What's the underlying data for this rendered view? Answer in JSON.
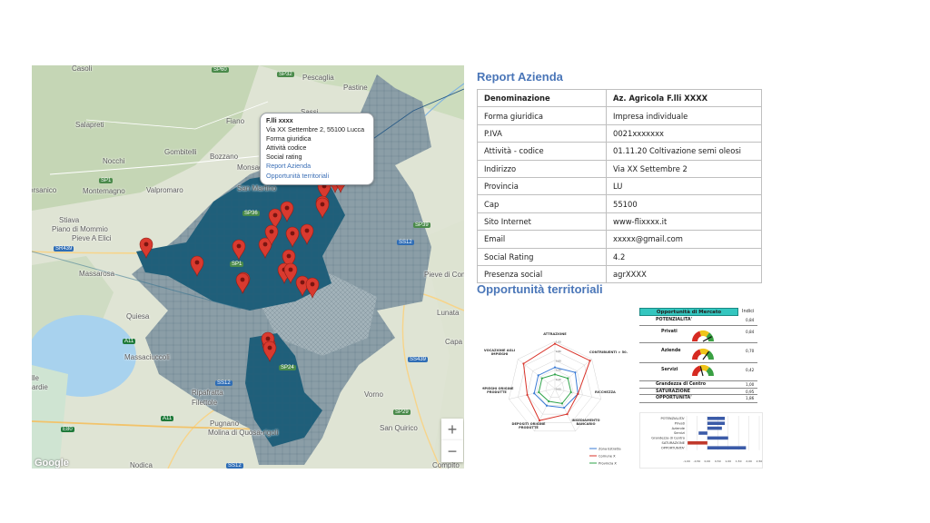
{
  "map": {
    "places": [
      "Casoli",
      "Pescaglia",
      "Pastine",
      "Salapreti",
      "Fiano",
      "Sassi",
      "Nocchi",
      "Gombitelli",
      "Bozzano",
      "Monsagrati",
      "orsanico",
      "Montemagno",
      "Valpromaro",
      "San Martino",
      "Stiava",
      "Piano di Mommio",
      "Pieve A Elici",
      "Massarosa",
      "Quiesa",
      "Pieve di Compito",
      "Massaciuccoli",
      "Capa",
      "Lunata",
      "Ripafratta",
      "Filettole",
      "Vorno",
      "Pugnano",
      "Molina di Quosa-rigoli",
      "San Quirico",
      "Nodica",
      "Compito",
      "lle",
      "ardie"
    ],
    "roads": [
      "SP60",
      "SP32",
      "SP1",
      "SR439",
      "SP1",
      "SS12",
      "SP39",
      "SS12",
      "SP24",
      "SP29",
      "A11",
      "A11",
      "E80",
      "SS12",
      "SP36",
      "SS439"
    ],
    "popup": {
      "title": "F.lli xxxx",
      "address": "Via XX Settembre 2, 55100 Lucca",
      "forma": "Forma giuridica",
      "attivita": "Attività codice",
      "social": "Social rating",
      "link_report": "Report Azienda",
      "link_opportunita": "Opportunità territoriali"
    },
    "zoom_in": "+",
    "zoom_out": "−",
    "logo": "Google",
    "marker_count": 25
  },
  "report": {
    "title": "Report Azienda",
    "rows": [
      {
        "key": "Denominazione",
        "value": "Az. Agricola F.lli XXXX"
      },
      {
        "key": "Forma giuridica",
        "value": "Impresa individuale"
      },
      {
        "key": "P.IVA",
        "value": "0021xxxxxxx"
      },
      {
        "key": "Attività - codice",
        "value": "01.11.20 Coltivazione semi oleosi"
      },
      {
        "key": "Indirizzo",
        "value": "Via XX Settembre 2"
      },
      {
        "key": "Provincia",
        "value": "LU"
      },
      {
        "key": "Cap",
        "value": "55100"
      },
      {
        "key": "Sito Internet",
        "value": "www-flixxxx.it"
      },
      {
        "key": "Email",
        "value": "xxxxx@gmail.com"
      },
      {
        "key": "Social Rating",
        "value": "4.2"
      },
      {
        "key": "Presenza social",
        "value": "agrXXXX"
      }
    ]
  },
  "opportunita": {
    "title": "Opportunità territoriali",
    "radar": {
      "axes": [
        "ATTRAZIONE",
        "CONTRIBUENTI > 50.000",
        "RICCHEZZA",
        "INSEDIAMENTO BANCARIO",
        "DEPOSITI ORIGINE PRODUTTE",
        "IMPIEGHI ORIGINE PRODUTTE",
        "VOCAZIONE AGLI IMPIEGHI"
      ],
      "ticks": [
        "1,00",
        "0,80",
        "0,60",
        "0,40",
        "0,20",
        "0,00"
      ],
      "series": [
        {
          "name": "Zona Estratta",
          "color": "#3a7bd5",
          "values": [
            0.45,
            0.55,
            0.5,
            0.45,
            0.4,
            0.45,
            0.45
          ]
        },
        {
          "name": "Comune X",
          "color": "#d9342b",
          "values": [
            0.95,
            0.95,
            0.5,
            0.6,
            0.75,
            0.6,
            0.85
          ]
        },
        {
          "name": "Provincia X",
          "color": "#2fa34a",
          "values": [
            0.3,
            0.35,
            0.35,
            0.35,
            0.3,
            0.35,
            0.35
          ]
        }
      ]
    },
    "market": {
      "title": "Opportunità di Mercato",
      "indici_label": "Indici",
      "rows": [
        {
          "label": "POTENZIALITA'",
          "value": "0,84"
        },
        {
          "label": "Privati",
          "value": "0,84"
        },
        {
          "label": "Aziende",
          "value": "0,70"
        },
        {
          "label": "Servizi",
          "value": "0,42"
        },
        {
          "label": "Grandezza di Centro",
          "value": "1,00"
        },
        {
          "label": "SATURAZIONE",
          "value": "0,95"
        },
        {
          "label": "OPPORTUNITA'",
          "value": "1,86"
        }
      ],
      "gauge_levels": [
        0.84,
        0.7,
        0.42
      ]
    },
    "bars": {
      "categories": [
        "POTENZIALITA'",
        "Privati",
        "Aziende",
        "Servizi",
        "Grandezza di Centro",
        "SATURAZIONE",
        "OPPORTUNITA'"
      ],
      "values": [
        0.84,
        0.84,
        0.7,
        -0.42,
        1.0,
        -0.95,
        1.86
      ],
      "colors": [
        "#3b5ba8",
        "#3b5ba8",
        "#3b5ba8",
        "#3b5ba8",
        "#3b5ba8",
        "#c0392b",
        "#3b5ba8"
      ],
      "ticks": [
        "-1,00",
        "-0,50",
        "0,00",
        "0,50",
        "1,00",
        "1,50",
        "2,00",
        "2,50"
      ],
      "xlim": [
        -1,
        2.5
      ]
    }
  },
  "colors": {
    "accent": "#4a76b8",
    "zone": "#1f5f7a",
    "marker": "#d93a2f"
  }
}
